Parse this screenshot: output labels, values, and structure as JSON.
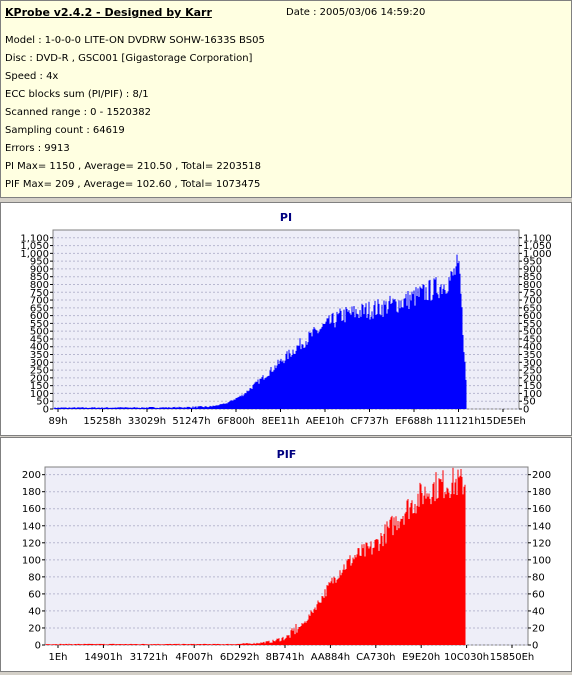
{
  "info": {
    "title": "KProbe v2.4.2 - Designed by Karr",
    "date": "Date : 2005/03/06 14:59:20",
    "lines": [
      "Model : 1-0-0-0 LITE-ON DVDRW SOHW-1633S BS05",
      "Disc : DVD-R , GSC001 [Gigastorage Corporation]",
      "Speed : 4x",
      "ECC blocks sum (PI/PIF) : 8/1",
      "Scanned range : 0 - 1520382",
      "Sampling count : 64619",
      "Errors : 9913",
      "PI Max= 1150 , Average= 210.50 , Total= 2203518",
      "PIF Max= 209 , Average= 102.60 , Total= 1073475"
    ]
  },
  "chart_data": [
    {
      "type": "bar",
      "title": "PI",
      "color": "#0000ff",
      "ylim": [
        0,
        1150
      ],
      "yticks": [
        0,
        50,
        100,
        150,
        200,
        250,
        300,
        350,
        400,
        450,
        500,
        550,
        600,
        650,
        700,
        750,
        800,
        850,
        900,
        950,
        1000,
        1050,
        1100
      ],
      "ytick_labels": [
        "0",
        "50",
        "100",
        "150",
        "200",
        "250",
        "300",
        "350",
        "400",
        "450",
        "500",
        "550",
        "600",
        "650",
        "700",
        "750",
        "800",
        "850",
        "900",
        "950",
        "1,000",
        "1,050",
        "1,100"
      ],
      "xtick_labels": [
        "89h",
        "15258h",
        "33029h",
        "51247h",
        "6F800h",
        "8EE11h",
        "AEE10h",
        "CF737h",
        "EF688h",
        "111121h",
        "15DE5Eh"
      ],
      "grid": true,
      "envelope": {
        "x": [
          0,
          0.3,
          0.38,
          0.42,
          0.46,
          0.5,
          0.55,
          0.6,
          0.65,
          0.7,
          0.75,
          0.8,
          0.85,
          0.9,
          0.94,
          0.965,
          0.972,
          0.978,
          0.985,
          1.0
        ],
        "y": [
          8,
          10,
          15,
          40,
          100,
          200,
          330,
          460,
          570,
          660,
          690,
          720,
          760,
          820,
          870,
          920,
          960,
          1000,
          940,
          200
        ]
      }
    },
    {
      "type": "bar",
      "title": "PIF",
      "color": "#ff0000",
      "ylim": [
        0,
        209
      ],
      "yticks": [
        0,
        20,
        40,
        60,
        80,
        100,
        120,
        140,
        160,
        180,
        200
      ],
      "ytick_labels": [
        "0",
        "20",
        "40",
        "60",
        "80",
        "100",
        "120",
        "140",
        "160",
        "180",
        "200"
      ],
      "xtick_labels": [
        "1Eh",
        "14901h",
        "31721h",
        "4F007h",
        "6D292h",
        "8B741h",
        "AA884h",
        "CA730h",
        "E9E20h",
        "10C030h",
        "15850Eh"
      ],
      "grid": true,
      "envelope": {
        "x": [
          0,
          0.45,
          0.5,
          0.54,
          0.58,
          0.62,
          0.66,
          0.7,
          0.74,
          0.78,
          0.82,
          0.86,
          0.9,
          0.93,
          0.96,
          0.98,
          1.0
        ],
        "y": [
          1,
          1,
          2,
          4,
          10,
          30,
          62,
          95,
          115,
          125,
          150,
          175,
          195,
          205,
          209,
          209,
          209
        ]
      }
    }
  ]
}
